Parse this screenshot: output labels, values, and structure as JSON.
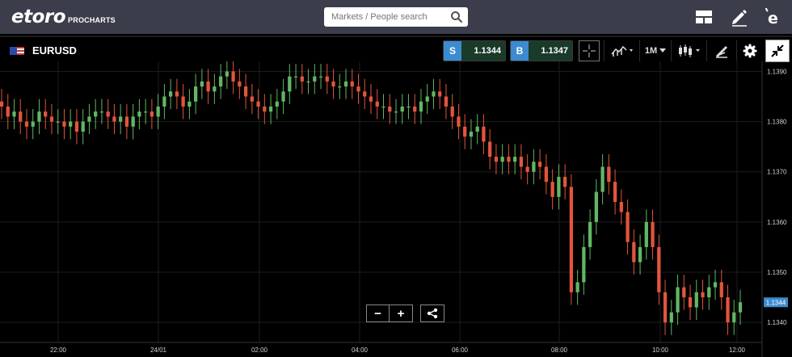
{
  "header": {
    "logo_text": "etoro",
    "logo_sub": "PROCHARTS",
    "search_placeholder": "Markets / People search",
    "icons": [
      "layout-icon",
      "pencil-icon",
      "etoro-e-icon"
    ]
  },
  "toolbar": {
    "symbol": "EURUSD",
    "sell_label": "S",
    "sell_price": "1.1344",
    "buy_label": "B",
    "buy_price": "1.1347",
    "timeframe": "1M",
    "icons": [
      "flag-icon",
      "crosshair-icon",
      "chart-type-icon",
      "candles-icon",
      "drawing-icon",
      "gear-icon",
      "collapse-icon"
    ]
  },
  "chart": {
    "current_price_label": "1.1344",
    "zoom_out_label": "−",
    "zoom_in_label": "+"
  },
  "colors": {
    "topbar": "#3b3d4a",
    "up": "#61b764",
    "down": "#e2553c",
    "accent": "#3c8bd0",
    "grid": "#1e1e1e"
  },
  "chart_data": {
    "type": "candlestick",
    "symbol": "EURUSD",
    "timeframe": "1M",
    "ylim": [
      1.1336,
      1.1392
    ],
    "y_ticks": [
      "1.1390",
      "1.1380",
      "1.1370",
      "1.1360",
      "1.1350",
      "1.1340"
    ],
    "x_ticks": [
      "22:00",
      "24/01",
      "02:00",
      "04:00",
      "06:00",
      "08:00",
      "10:00",
      "12:00"
    ],
    "current_price": "1.1344",
    "series": [
      {
        "name": "EURUSD",
        "close": [
          1.1383,
          1.1381,
          1.1382,
          1.138,
          1.1379,
          1.138,
          1.1382,
          1.1381,
          1.138,
          1.138,
          1.1379,
          1.138,
          1.1378,
          1.138,
          1.1381,
          1.1382,
          1.1382,
          1.1381,
          1.138,
          1.1381,
          1.1379,
          1.1381,
          1.1382,
          1.1382,
          1.1381,
          1.1383,
          1.1385,
          1.1386,
          1.1385,
          1.1383,
          1.1384,
          1.1387,
          1.1388,
          1.1386,
          1.1387,
          1.1389,
          1.139,
          1.1388,
          1.1387,
          1.1385,
          1.1384,
          1.1383,
          1.1382,
          1.1383,
          1.1384,
          1.1386,
          1.1389,
          1.1389,
          1.1388,
          1.1388,
          1.1389,
          1.1389,
          1.1388,
          1.1387,
          1.1387,
          1.1388,
          1.1387,
          1.1386,
          1.1385,
          1.1384,
          1.1383,
          1.1383,
          1.1382,
          1.1382,
          1.1383,
          1.1383,
          1.1382,
          1.1384,
          1.1385,
          1.1386,
          1.1385,
          1.1383,
          1.1381,
          1.1379,
          1.1377,
          1.1378,
          1.1379,
          1.1376,
          1.1373,
          1.1372,
          1.1373,
          1.1372,
          1.1373,
          1.1371,
          1.137,
          1.1372,
          1.1371,
          1.1368,
          1.1365,
          1.1369,
          1.1367,
          1.1346,
          1.1348,
          1.1355,
          1.136,
          1.1366,
          1.1371,
          1.1368,
          1.1364,
          1.1362,
          1.1356,
          1.1352,
          1.1355,
          1.136,
          1.1355,
          1.1346,
          1.134,
          1.1342,
          1.1347,
          1.1345,
          1.1343,
          1.1346,
          1.1345,
          1.1347,
          1.1348,
          1.1345,
          1.134,
          1.1342,
          1.1344
        ]
      }
    ]
  }
}
